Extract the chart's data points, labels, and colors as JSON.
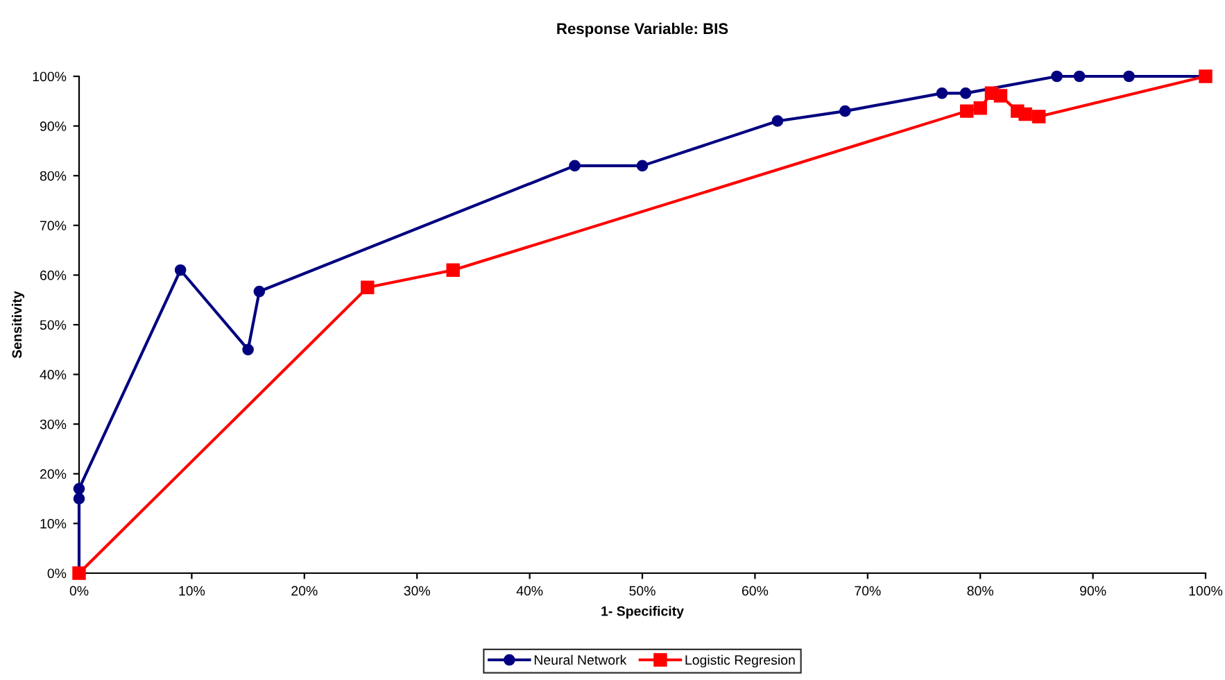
{
  "chart_data": {
    "type": "line",
    "title": "Response Variable: BIS",
    "xlabel": "1- Specificity",
    "ylabel": "Sensitivity",
    "series": [
      {
        "name": "Neural Network",
        "color": "#000080",
        "marker": "circle",
        "x": [
          0,
          0,
          0,
          9,
          15,
          16,
          44,
          50,
          62,
          68,
          76.6,
          78.7,
          86.8,
          88.8,
          93.2,
          100
        ],
        "values": [
          0,
          15,
          17,
          61,
          45,
          56.7,
          82,
          82,
          91,
          93,
          96.6,
          96.6,
          100,
          100,
          100,
          100
        ]
      },
      {
        "name": "Logistic Regresion",
        "color": "#ff0000",
        "marker": "square",
        "x": [
          0,
          25.6,
          33.2,
          78.8,
          80,
          81,
          81.8,
          83.3,
          84,
          85.2,
          100
        ],
        "values": [
          0,
          57.5,
          61,
          93,
          93.6,
          96.6,
          96.1,
          93,
          92.4,
          91.9,
          100
        ]
      }
    ],
    "xlim": [
      0,
      100
    ],
    "ylim": [
      0,
      100
    ],
    "xticks": [
      {
        "value": 0,
        "label": "0%"
      },
      {
        "value": 10,
        "label": "10%"
      },
      {
        "value": 20,
        "label": "20%"
      },
      {
        "value": 30,
        "label": "30%"
      },
      {
        "value": 40,
        "label": "40%"
      },
      {
        "value": 50,
        "label": "50%"
      },
      {
        "value": 60,
        "label": "60%"
      },
      {
        "value": 70,
        "label": "70%"
      },
      {
        "value": 80,
        "label": "80%"
      },
      {
        "value": 90,
        "label": "90%"
      },
      {
        "value": 100,
        "label": "100%"
      }
    ],
    "yticks": [
      {
        "value": 0,
        "label": "0%"
      },
      {
        "value": 10,
        "label": "10%"
      },
      {
        "value": 20,
        "label": "20%"
      },
      {
        "value": 30,
        "label": "30%"
      },
      {
        "value": 40,
        "label": "40%"
      },
      {
        "value": 50,
        "label": "50%"
      },
      {
        "value": 60,
        "label": "60%"
      },
      {
        "value": 70,
        "label": "70%"
      },
      {
        "value": 80,
        "label": "80%"
      },
      {
        "value": 90,
        "label": "90%"
      },
      {
        "value": 100,
        "label": "100%"
      }
    ],
    "grid": false,
    "legend": "bottom"
  }
}
